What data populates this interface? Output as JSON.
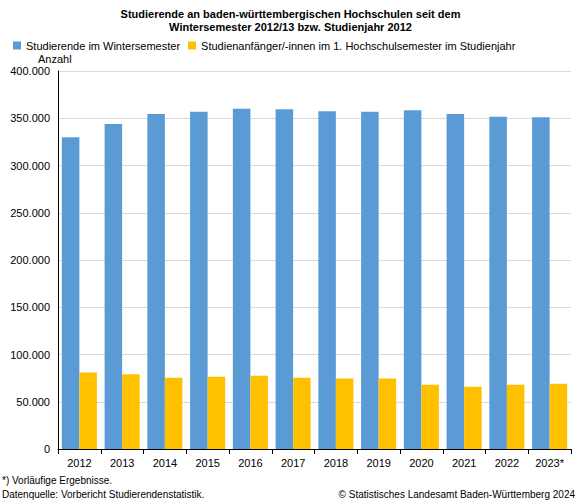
{
  "chart_data": {
    "type": "bar",
    "title": "Studierende an baden-württembergischen Hochschulen seit dem\nWintersemester 2012/13 bzw. Studienjahr 2012",
    "y_label": "Anzahl",
    "categories": [
      "2012",
      "2013",
      "2014",
      "2015",
      "2016",
      "2017",
      "2018",
      "2019",
      "2020",
      "2021",
      "2022",
      "2023*"
    ],
    "series": [
      {
        "name": "Studierende im Wintersemester",
        "color": "#5b9bd5",
        "values": [
          330000,
          344000,
          354500,
          357000,
          360000,
          359500,
          357500,
          357000,
          358500,
          354500,
          351500,
          351000
        ]
      },
      {
        "name": "Studienanfänger/-innen im 1. Hochschulsemester im Studienjahr",
        "color": "#ffc000",
        "values": [
          81000,
          79000,
          75500,
          76500,
          77500,
          75500,
          74500,
          74500,
          68000,
          66000,
          68000,
          69000
        ]
      }
    ],
    "ylim": [
      0,
      400000
    ],
    "yticks": [
      0,
      {
        "value": 50000,
        "label": "50.000"
      },
      {
        "value": 100000,
        "label": "100.000"
      },
      {
        "value": 150000,
        "label": "150.000"
      },
      {
        "value": 200000,
        "label": "200.000"
      },
      {
        "value": 250000,
        "label": "250.000"
      },
      {
        "value": 300000,
        "label": "300.000"
      },
      {
        "value": 350000,
        "label": "350.000"
      },
      {
        "value": 400000,
        "label": "400.000"
      }
    ],
    "grid": true,
    "legend": "top",
    "footnotes": [
      "*) Vorläufige Ergebnisse.",
      "Datenquelle: Vorbericht Studierendenstatistik."
    ],
    "copyright": "© Statistisches Landesamt Baden-Württemberg 2024"
  }
}
